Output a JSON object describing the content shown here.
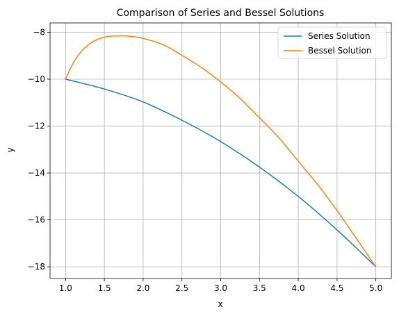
{
  "chart_data": {
    "type": "line",
    "title": "Comparison of Series and Bessel Solutions",
    "xlabel": "x",
    "ylabel": "y",
    "xlim": [
      0.8,
      5.2
    ],
    "ylim": [
      -18.5,
      -7.6
    ],
    "xticks": [
      1.0,
      1.5,
      2.0,
      2.5,
      3.0,
      3.5,
      4.0,
      4.5,
      5.0
    ],
    "xtick_labels": [
      "1.0",
      "1.5",
      "2.0",
      "2.5",
      "3.0",
      "3.5",
      "4.0",
      "4.5",
      "5.0"
    ],
    "yticks": [
      -8,
      -10,
      -12,
      -14,
      -16,
      -18
    ],
    "ytick_labels": [
      "−8",
      "−10",
      "−12",
      "−14",
      "−16",
      "−18"
    ],
    "grid": true,
    "legend_position": "top-right",
    "series": [
      {
        "name": "Series Solution",
        "color": "#1f77b4",
        "x": [
          1.0,
          1.5,
          2.0,
          2.5,
          3.0,
          3.5,
          4.0,
          4.5,
          5.0
        ],
        "y": [
          -10.0,
          -10.42,
          -10.97,
          -11.75,
          -12.66,
          -13.75,
          -15.0,
          -16.43,
          -18.0
        ]
      },
      {
        "name": "Bessel Solution",
        "color": "#ff7f0e",
        "x": [
          1.0,
          1.1,
          1.2,
          1.3,
          1.4,
          1.5,
          1.6,
          1.7,
          1.75,
          1.8,
          1.9,
          2.0,
          2.25,
          2.5,
          2.75,
          3.0,
          3.25,
          3.5,
          3.75,
          4.0,
          4.25,
          4.5,
          4.75,
          5.0
        ],
        "y": [
          -10.0,
          -9.3,
          -8.83,
          -8.52,
          -8.32,
          -8.21,
          -8.16,
          -8.15,
          -8.15,
          -8.16,
          -8.2,
          -8.26,
          -8.52,
          -8.98,
          -9.5,
          -10.12,
          -10.82,
          -11.65,
          -12.5,
          -13.5,
          -14.5,
          -15.6,
          -16.8,
          -18.0
        ]
      }
    ]
  }
}
